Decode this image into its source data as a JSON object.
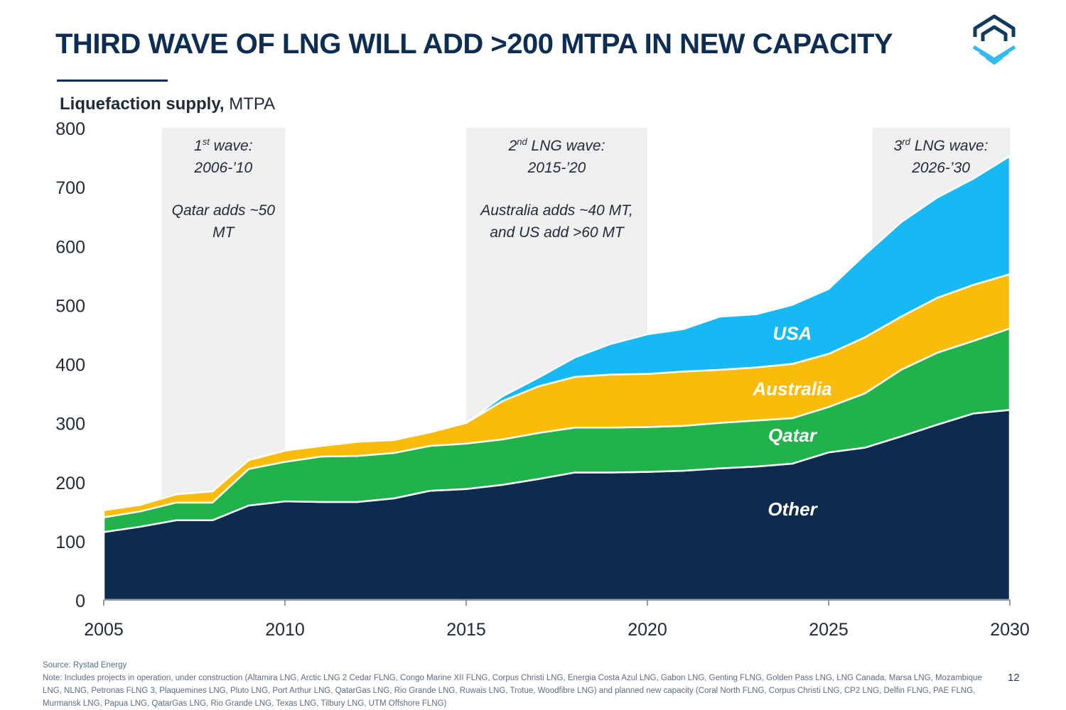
{
  "title": "THIRD WAVE OF LNG WILL ADD >200 MTPA IN NEW CAPACITY",
  "subtitle": {
    "label": "Liquefaction supply,",
    "unit": "MTPA"
  },
  "source": "Source: Rystad Energy",
  "note": "Note: Includes projects in operation, under construction (Altamira LNG, Arctic LNG 2 Cedar FLNG, Congo Marine XII FLNG, Corpus Christi LNG, Energia Costa Azul LNG, Gabon LNG, Genting FLNG, Golden Pass LNG, LNG Canada, Marsa LNG, Mozambique LNG, NLNG, Petronas FLNG 3, Plaquemines LNG, Pluto LNG, Port Arthur LNG, QatarGas LNG, Rio Grande LNG, Ruwais LNG, Trotue, Woodfibre LNG) and planned new capacity (Coral North FLNG, Corpus Christi LNG, CP2 LNG, Delfin FLNG, PAE FLNG, Murmansk LNG, Papua LNG, QatarGas LNG, Rio Grande LNG, Texas LNG, Tilbury LNG, UTM Offshore FLNG)",
  "page_number": "12",
  "colors": {
    "other": "#0d2b4e",
    "qatar": "#22b24c",
    "australia": "#f9bc0a",
    "usa": "#17b9f4",
    "band": "#efefef",
    "brand": "#123a5c",
    "brand_accent": "#33baf0"
  },
  "chart_data": {
    "type": "area",
    "stacked": true,
    "title": "",
    "xlabel": "",
    "ylabel": "Liquefaction supply, MTPA",
    "xlim": [
      2005,
      2030
    ],
    "ylim": [
      0,
      800
    ],
    "x_ticks": [
      "2005",
      "2010",
      "2015",
      "2020",
      "2025",
      "2030"
    ],
    "y_ticks": [
      "0",
      "100",
      "200",
      "300",
      "400",
      "500",
      "600",
      "700",
      "800"
    ],
    "grid": false,
    "x": [
      2005,
      2006,
      2007,
      2008,
      2009,
      2010,
      2011,
      2012,
      2013,
      2014,
      2015,
      2016,
      2017,
      2018,
      2019,
      2020,
      2021,
      2022,
      2023,
      2024,
      2025,
      2026,
      2027,
      2028,
      2029,
      2030
    ],
    "series": [
      {
        "name": "Other",
        "color": "#0d2b4e",
        "values": [
          115,
          124,
          135,
          135,
          160,
          167,
          166,
          166,
          172,
          185,
          188,
          195,
          205,
          216,
          216,
          217,
          219,
          223,
          226,
          231,
          250,
          258,
          277,
          297,
          316,
          322
        ]
      },
      {
        "name": "Qatar",
        "color": "#22b24c",
        "values": [
          25,
          26,
          30,
          30,
          62,
          67,
          77,
          78,
          77,
          76,
          77,
          77,
          78,
          76,
          76,
          76,
          76,
          77,
          78,
          77,
          77,
          92,
          113,
          122,
          123,
          138
        ]
      },
      {
        "name": "Australia",
        "color": "#f9bc0a",
        "values": [
          12,
          11,
          14,
          19,
          15,
          19,
          18,
          24,
          22,
          23,
          35,
          65,
          79,
          86,
          90,
          90,
          92,
          90,
          90,
          92,
          90,
          95,
          90,
          93,
          95,
          92
        ]
      },
      {
        "name": "USA",
        "color": "#17b9f4",
        "values": [
          0,
          0,
          0,
          0,
          0,
          0,
          0,
          0,
          0,
          0,
          0,
          8,
          15,
          33,
          52,
          67,
          72,
          90,
          90,
          100,
          110,
          140,
          160,
          170,
          180,
          200
        ]
      }
    ],
    "series_labels": [
      {
        "text": "Other",
        "x": 2024,
        "y": 143
      },
      {
        "text": "Qatar",
        "x": 2024,
        "y": 268
      },
      {
        "text": "Australia",
        "x": 2024,
        "y": 347
      },
      {
        "text": "USA",
        "x": 2024,
        "y": 441
      }
    ],
    "bands": [
      {
        "from": 2006.6,
        "to": 2010,
        "heading_sup": "st",
        "heading_lead": "1",
        "heading_rest": " wave:",
        "period": "2006-’10",
        "note_lines": [
          "Qatar adds ~50",
          "MT"
        ]
      },
      {
        "from": 2015,
        "to": 2020,
        "heading_sup": "nd",
        "heading_lead": "2",
        "heading_rest": " LNG wave:",
        "period": "2015-’20",
        "note_lines": [
          "Australia adds ~40 MT,",
          "and US add >60 MT"
        ]
      },
      {
        "from": 2026.2,
        "to": 2030,
        "heading_sup": "rd",
        "heading_lead": "3",
        "heading_rest": " LNG wave:",
        "period": "2026-’30",
        "note_lines": []
      }
    ]
  }
}
